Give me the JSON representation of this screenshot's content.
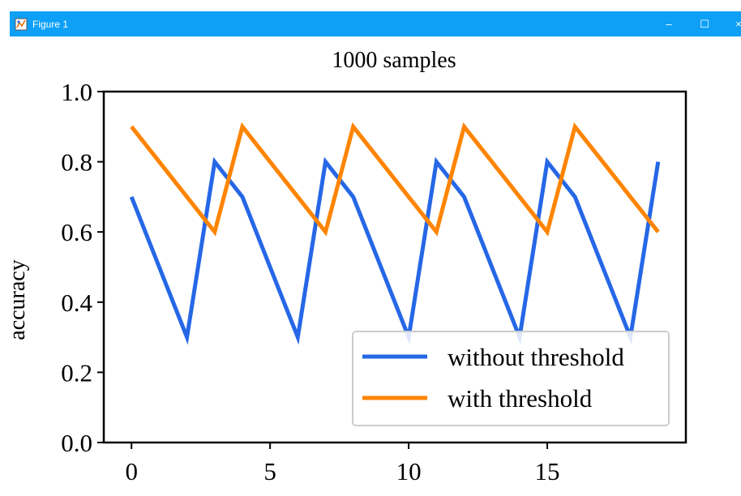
{
  "window": {
    "title": "Figure 1",
    "buttons": {
      "minimize": "–",
      "maximize": "☐",
      "close": "×"
    }
  },
  "colors": {
    "titlebar": "#0ea0f7",
    "series_without": "#2667e6",
    "series_with": "#ff8400"
  },
  "chart_data": {
    "type": "line",
    "title": "1000 samples",
    "xlabel": "",
    "ylabel": "accuracy",
    "xlim": [
      -1.0,
      20.0
    ],
    "ylim": [
      0.0,
      1.0
    ],
    "xticks": [
      0,
      5,
      10,
      15
    ],
    "xtick_labels": [
      "0",
      "5",
      "10",
      "15"
    ],
    "yticks": [
      0.0,
      0.2,
      0.4,
      0.6,
      0.8,
      1.0
    ],
    "ytick_labels": [
      "0.0",
      "0.2",
      "0.4",
      "0.6",
      "0.8",
      "1.0"
    ],
    "x": [
      0,
      1,
      2,
      3,
      4,
      5,
      6,
      7,
      8,
      9,
      10,
      11,
      12,
      13,
      14,
      15,
      16,
      17,
      18,
      19
    ],
    "series": [
      {
        "name": "without threshold",
        "color": "#2667e6",
        "values": [
          0.7,
          0.5,
          0.3,
          0.8,
          0.7,
          0.5,
          0.3,
          0.8,
          0.7,
          0.5,
          0.3,
          0.8,
          0.7,
          0.5,
          0.3,
          0.8,
          0.7,
          0.5,
          0.3,
          0.8
        ]
      },
      {
        "name": "with threshold",
        "color": "#ff8400",
        "values": [
          0.9,
          0.8,
          0.7,
          0.6,
          0.9,
          0.8,
          0.7,
          0.6,
          0.9,
          0.8,
          0.7,
          0.6,
          0.9,
          0.8,
          0.7,
          0.6,
          0.9,
          0.8,
          0.7,
          0.6
        ]
      }
    ],
    "legend": {
      "position": "lower-right",
      "entries": [
        "without threshold",
        "with threshold"
      ]
    },
    "grid": false
  }
}
